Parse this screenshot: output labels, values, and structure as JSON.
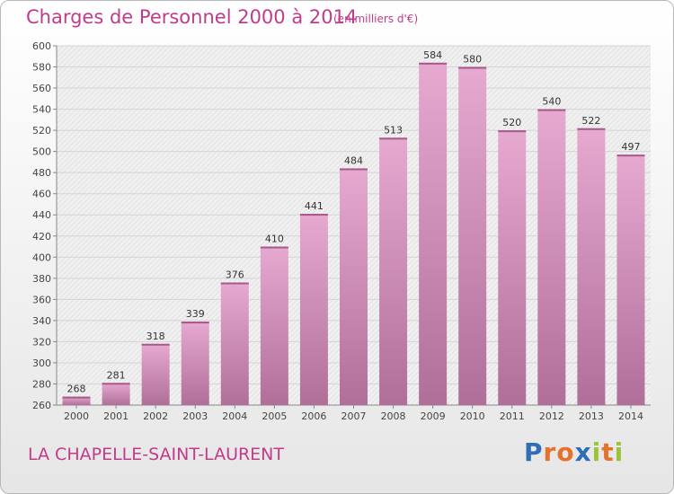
{
  "header": {
    "title": "Charges de Personnel 2000 à 2014",
    "subtitle": "(en milliers d'€)"
  },
  "footer": {
    "commune": "LA CHAPELLE-SAINT-LAURENT",
    "logo_letters": [
      "P",
      "r",
      "o",
      "x",
      "i",
      "t",
      "i"
    ]
  },
  "colors": {
    "title": "#c23b8a",
    "bar_top": "#e6a9d0",
    "bar_bottom": "#b06f99",
    "logo": [
      "#2f6db6",
      "#e4722b",
      "#e4722b",
      "#2f6db6",
      "#9bc43a",
      "#e4722b",
      "#9bc43a"
    ]
  },
  "chart_data": {
    "type": "bar",
    "categories": [
      "2000",
      "2001",
      "2002",
      "2003",
      "2004",
      "2005",
      "2006",
      "2007",
      "2008",
      "2009",
      "2010",
      "2011",
      "2012",
      "2013",
      "2014"
    ],
    "values": [
      268,
      281,
      318,
      339,
      376,
      410,
      441,
      484,
      513,
      584,
      580,
      520,
      540,
      522,
      497
    ],
    "ylim": [
      260,
      600
    ],
    "yticks": [
      260,
      280,
      300,
      320,
      340,
      360,
      380,
      400,
      420,
      440,
      460,
      480,
      500,
      520,
      540,
      560,
      580,
      600
    ],
    "grid": true,
    "xlabel": "",
    "ylabel": ""
  }
}
